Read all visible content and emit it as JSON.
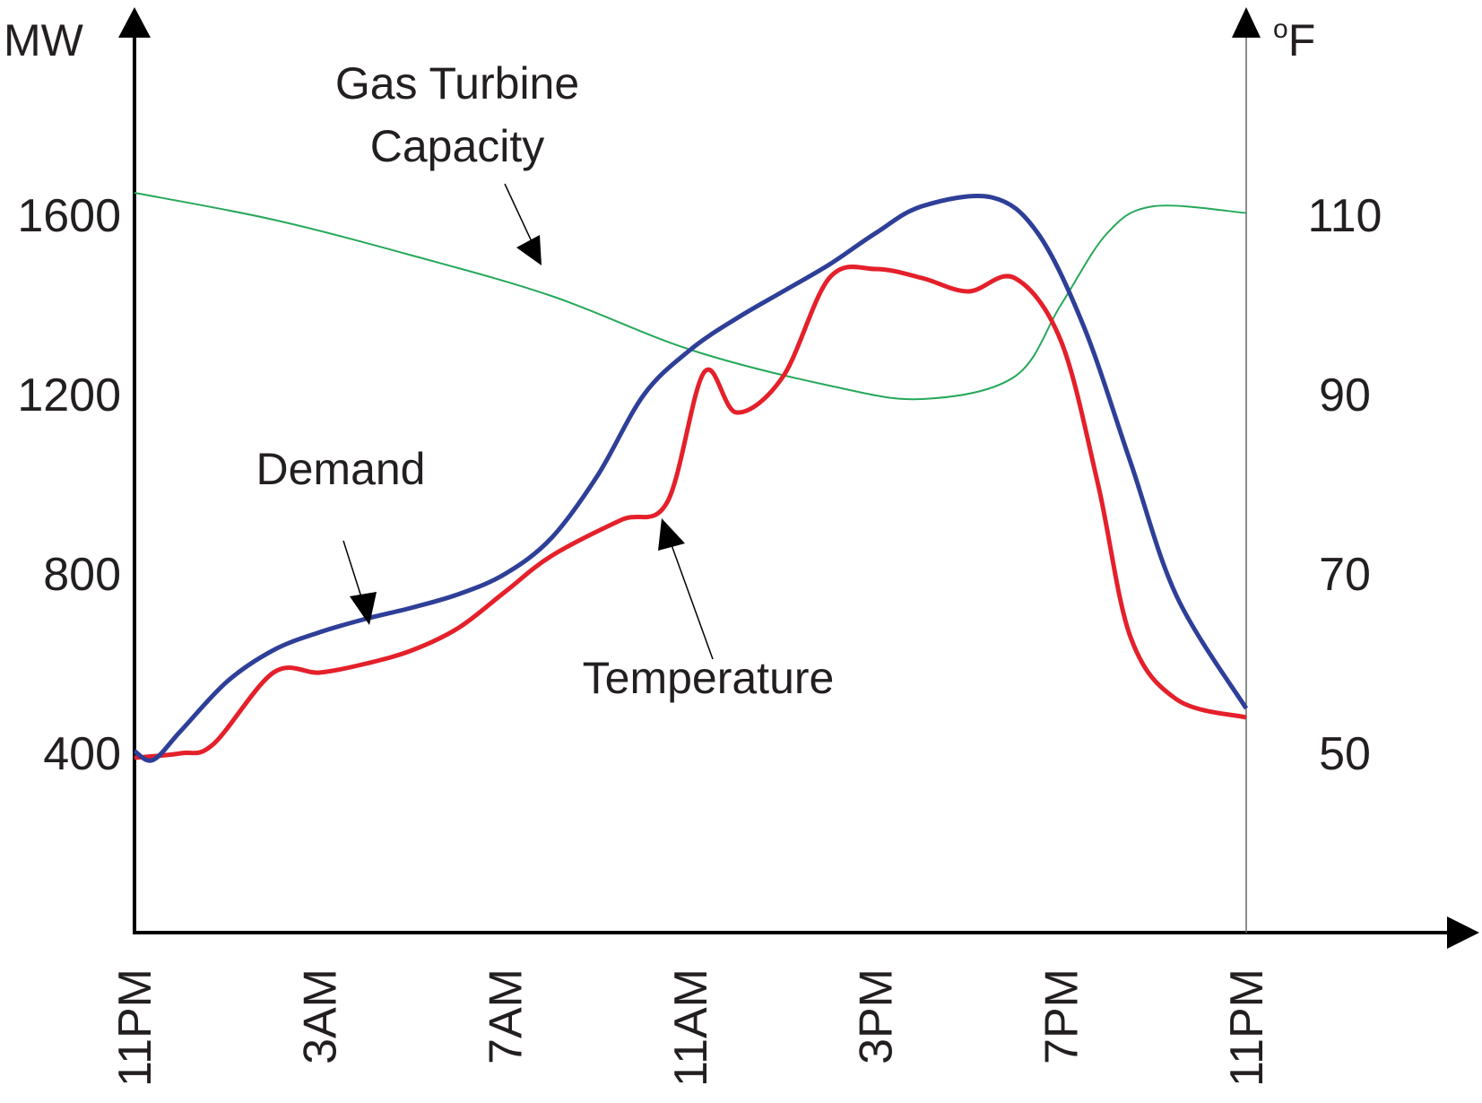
{
  "chart_data": {
    "type": "line",
    "title": "",
    "x_label": "",
    "y_left_label": "MW",
    "y_right_label_superscript": "o",
    "y_right_label": "F",
    "x_tick_labels": [
      "11PM",
      "3AM",
      "7AM",
      "11AM",
      "3PM",
      "7PM",
      "11PM"
    ],
    "x_range": [
      0,
      24
    ],
    "y_left_range": [
      0,
      2000
    ],
    "y_right_range": [
      30,
      130
    ],
    "y_left_ticks": [
      400,
      800,
      1200,
      1600
    ],
    "y_left_tick_labels": [
      "400",
      "800",
      "1200",
      "1600"
    ],
    "y_right_ticks": [
      50,
      70,
      90,
      110
    ],
    "y_right_tick_labels": [
      "50",
      "70",
      "90",
      "110"
    ],
    "grid": false,
    "series": [
      {
        "name": "Demand",
        "axis": "left",
        "color": "#2e3f98",
        "points": [
          [
            0,
            405
          ],
          [
            0.4,
            385
          ],
          [
            1,
            450
          ],
          [
            2,
            560
          ],
          [
            3,
            630
          ],
          [
            4,
            670
          ],
          [
            5,
            700
          ],
          [
            6,
            725
          ],
          [
            7,
            755
          ],
          [
            8,
            800
          ],
          [
            9,
            880
          ],
          [
            10,
            1020
          ],
          [
            11,
            1200
          ],
          [
            12,
            1300
          ],
          [
            13,
            1370
          ],
          [
            14,
            1430
          ],
          [
            15,
            1490
          ],
          [
            16,
            1560
          ],
          [
            17,
            1620
          ],
          [
            18.5,
            1640
          ],
          [
            19.5,
            1560
          ],
          [
            20.5,
            1350
          ],
          [
            21.5,
            1050
          ],
          [
            22.5,
            750
          ],
          [
            24,
            500
          ]
        ]
      },
      {
        "name": "Temperature",
        "axis": "right",
        "color": "#e4202a",
        "points": [
          [
            0,
            49.5
          ],
          [
            1,
            50
          ],
          [
            1.7,
            51
          ],
          [
            3,
            59
          ],
          [
            4,
            59
          ],
          [
            5,
            60
          ],
          [
            6,
            61.5
          ],
          [
            7,
            64
          ],
          [
            8,
            68
          ],
          [
            9,
            72
          ],
          [
            10.5,
            76
          ],
          [
            11.5,
            78
          ],
          [
            12.3,
            92.5
          ],
          [
            13,
            88
          ],
          [
            14,
            92
          ],
          [
            15,
            103
          ],
          [
            16,
            104
          ],
          [
            17,
            103
          ],
          [
            18,
            101.5
          ],
          [
            19,
            103
          ],
          [
            20,
            96
          ],
          [
            20.8,
            80
          ],
          [
            21.5,
            63
          ],
          [
            22.5,
            56
          ],
          [
            24,
            54
          ]
        ]
      },
      {
        "name": "Gas Turbine Capacity",
        "axis": "left",
        "color": "#26a85a",
        "points": [
          [
            0,
            1650
          ],
          [
            3,
            1590
          ],
          [
            6,
            1510
          ],
          [
            9,
            1420
          ],
          [
            12,
            1300
          ],
          [
            15,
            1220
          ],
          [
            17,
            1190
          ],
          [
            19,
            1240
          ],
          [
            20,
            1400
          ],
          [
            21,
            1560
          ],
          [
            22,
            1620
          ],
          [
            24,
            1605
          ]
        ]
      }
    ],
    "annotations": {
      "capacity_line1": "Gas Turbine",
      "capacity_line2": "Capacity",
      "demand": "Demand",
      "temperature": "Temperature"
    }
  }
}
